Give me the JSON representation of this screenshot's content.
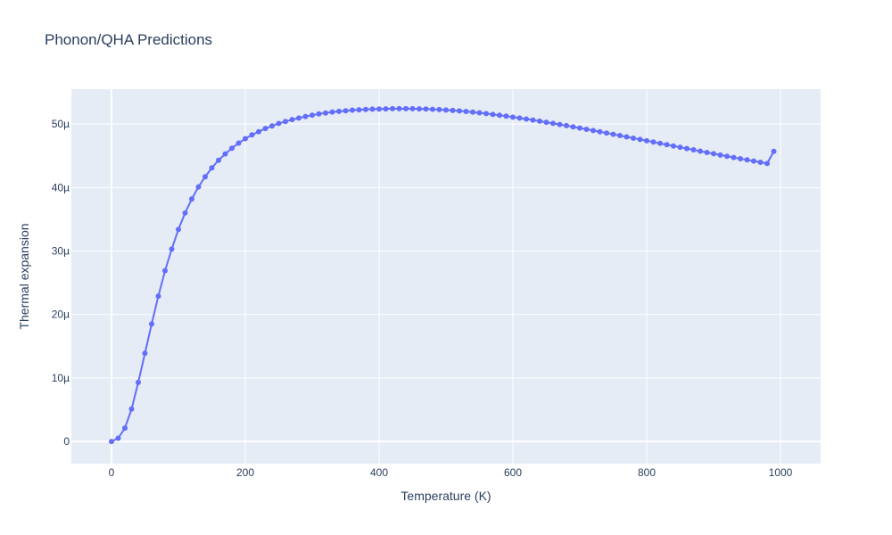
{
  "chart_data": {
    "type": "line",
    "title": "Phonon/QHA Predictions",
    "xlabel": "Temperature (K)",
    "ylabel": "Thermal expansion",
    "xlim": [
      -60,
      1060
    ],
    "ylim": [
      -3.5e-06,
      5.55e-05
    ],
    "x_ticks": [
      0,
      200,
      400,
      600,
      800,
      1000
    ],
    "x_tick_labels": [
      "0",
      "200",
      "400",
      "600",
      "800",
      "1000"
    ],
    "y_ticks": [
      0,
      1e-05,
      2e-05,
      3e-05,
      4e-05,
      5e-05
    ],
    "y_tick_labels": [
      "0",
      "10µ",
      "20µ",
      "30µ",
      "40µ",
      "50µ"
    ],
    "grid": true,
    "mode": "lines+markers",
    "colors": {
      "plot_bg": "#e5ecf6",
      "series": "#636efa",
      "grid": "#ffffff",
      "text": "#2a3f5f"
    },
    "series": [
      {
        "x": [
          0,
          10,
          20,
          30,
          40,
          50,
          60,
          70,
          80,
          90,
          100,
          110,
          120,
          130,
          140,
          150,
          160,
          170,
          180,
          190,
          200,
          210,
          220,
          230,
          240,
          250,
          260,
          270,
          280,
          290,
          300,
          310,
          320,
          330,
          340,
          350,
          360,
          370,
          380,
          390,
          400,
          410,
          420,
          430,
          440,
          450,
          460,
          470,
          480,
          490,
          500,
          510,
          520,
          530,
          540,
          550,
          560,
          570,
          580,
          590,
          600,
          610,
          620,
          630,
          640,
          650,
          660,
          670,
          680,
          690,
          700,
          710,
          720,
          730,
          740,
          750,
          760,
          770,
          780,
          790,
          800,
          810,
          820,
          830,
          840,
          850,
          860,
          870,
          880,
          890,
          900,
          910,
          920,
          930,
          940,
          950,
          960,
          970,
          980,
          990
        ],
        "y": [
          0,
          5e-07,
          2.1e-06,
          5.1e-06,
          9.3e-06,
          1.39e-05,
          1.85e-05,
          2.29e-05,
          2.69e-05,
          3.03e-05,
          3.34e-05,
          3.6e-05,
          3.82e-05,
          4.01e-05,
          4.17e-05,
          4.31e-05,
          4.43e-05,
          4.53e-05,
          4.62e-05,
          4.7e-05,
          4.77e-05,
          4.83e-05,
          4.88e-05,
          4.93e-05,
          4.97e-05,
          5.01e-05,
          5.04e-05,
          5.07e-05,
          5.095e-05,
          5.12e-05,
          5.14e-05,
          5.16e-05,
          5.175e-05,
          5.19e-05,
          5.2e-05,
          5.21e-05,
          5.22e-05,
          5.225e-05,
          5.23e-05,
          5.235e-05,
          5.238e-05,
          5.24e-05,
          5.242e-05,
          5.243e-05,
          5.243e-05,
          5.242e-05,
          5.24e-05,
          5.237e-05,
          5.233e-05,
          5.228e-05,
          5.222e-05,
          5.215e-05,
          5.207e-05,
          5.198e-05,
          5.188e-05,
          5.177e-05,
          5.165e-05,
          5.152e-05,
          5.139e-05,
          5.125e-05,
          5.11e-05,
          5.095e-05,
          5.079e-05,
          5.063e-05,
          5.046e-05,
          5.029e-05,
          5.011e-05,
          4.993e-05,
          4.975e-05,
          4.956e-05,
          4.937e-05,
          4.918e-05,
          4.899e-05,
          4.879e-05,
          4.859e-05,
          4.839e-05,
          4.819e-05,
          4.799e-05,
          4.778e-05,
          4.758e-05,
          4.737e-05,
          4.717e-05,
          4.696e-05,
          4.676e-05,
          4.655e-05,
          4.635e-05,
          4.614e-05,
          4.594e-05,
          4.573e-05,
          4.553e-05,
          4.533e-05,
          4.513e-05,
          4.493e-05,
          4.474e-05,
          4.455e-05,
          4.436e-05,
          4.417e-05,
          4.398e-05,
          4.379e-05,
          4.57e-05
        ]
      }
    ]
  }
}
